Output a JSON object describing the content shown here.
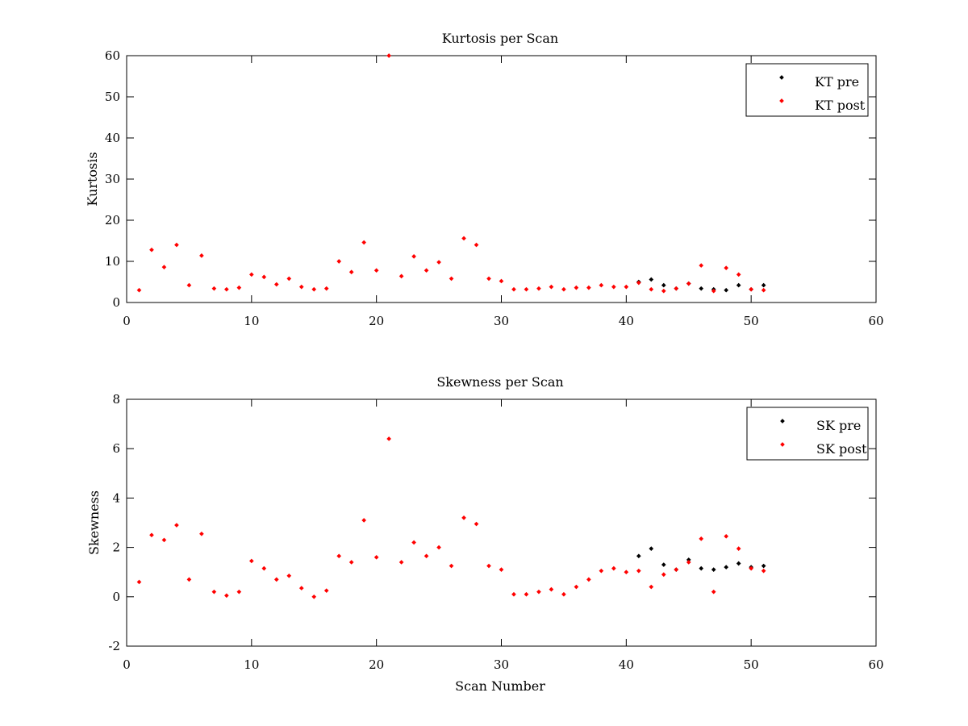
{
  "chart_data": [
    {
      "type": "scatter",
      "title": "Kurtosis per Scan",
      "xlabel": "",
      "ylabel": "Kurtosis",
      "xlim": [
        0,
        60
      ],
      "ylim": [
        0,
        60
      ],
      "xticks": [
        0,
        10,
        20,
        30,
        40,
        50,
        60
      ],
      "yticks": [
        0,
        10,
        20,
        30,
        40,
        50,
        60
      ],
      "legend_position": "top-right",
      "grid": false,
      "series": [
        {
          "name": "KT pre",
          "color": "#000000",
          "x": [
            41,
            42,
            43,
            44,
            45,
            46,
            47,
            48,
            49,
            50,
            51
          ],
          "y": [
            5.0,
            5.6,
            4.2,
            3.4,
            4.6,
            3.4,
            3.2,
            3.0,
            4.2,
            3.2,
            4.2
          ]
        },
        {
          "name": "KT post",
          "color": "#ff0000",
          "x": [
            1,
            2,
            3,
            4,
            5,
            6,
            7,
            8,
            9,
            10,
            11,
            12,
            13,
            14,
            15,
            16,
            17,
            18,
            19,
            20,
            21,
            22,
            23,
            24,
            25,
            26,
            27,
            28,
            29,
            30,
            31,
            32,
            33,
            34,
            35,
            36,
            37,
            38,
            39,
            40,
            41,
            42,
            43,
            44,
            45,
            46,
            47,
            48,
            49,
            50,
            51
          ],
          "y": [
            3.0,
            12.8,
            8.6,
            14.0,
            4.2,
            11.4,
            3.4,
            3.2,
            3.6,
            6.8,
            6.2,
            4.4,
            5.8,
            3.8,
            3.2,
            3.4,
            10.0,
            7.4,
            14.6,
            7.8,
            60,
            6.4,
            11.2,
            7.8,
            9.8,
            5.8,
            15.6,
            14.0,
            5.8,
            5.2,
            3.2,
            3.2,
            3.4,
            3.8,
            3.2,
            3.6,
            3.6,
            4.2,
            3.8,
            3.8,
            4.8,
            3.2,
            2.8,
            3.4,
            4.6,
            9.0,
            2.8,
            8.4,
            6.8,
            3.2,
            3.0
          ]
        }
      ]
    },
    {
      "type": "scatter",
      "title": "Skewness per Scan",
      "xlabel": "Scan Number",
      "ylabel": "Skewness",
      "xlim": [
        0,
        60
      ],
      "ylim": [
        -2,
        8
      ],
      "xticks": [
        0,
        10,
        20,
        30,
        40,
        50,
        60
      ],
      "yticks": [
        -2,
        0,
        2,
        4,
        6,
        8
      ],
      "legend_position": "top-right",
      "grid": false,
      "series": [
        {
          "name": "SK pre",
          "color": "#000000",
          "x": [
            41,
            42,
            43,
            44,
            45,
            46,
            47,
            48,
            49,
            50,
            51
          ],
          "y": [
            1.65,
            1.95,
            1.3,
            1.1,
            1.5,
            1.15,
            1.1,
            1.2,
            1.35,
            1.2,
            1.25
          ]
        },
        {
          "name": "SK post",
          "color": "#ff0000",
          "x": [
            1,
            2,
            3,
            4,
            5,
            6,
            7,
            8,
            9,
            10,
            11,
            12,
            13,
            14,
            15,
            16,
            17,
            18,
            19,
            20,
            21,
            22,
            23,
            24,
            25,
            26,
            27,
            28,
            29,
            30,
            31,
            32,
            33,
            34,
            35,
            36,
            37,
            38,
            39,
            40,
            41,
            42,
            43,
            44,
            45,
            46,
            47,
            48,
            49,
            50,
            51
          ],
          "y": [
            0.6,
            2.5,
            2.3,
            2.9,
            0.7,
            2.55,
            0.2,
            0.05,
            0.2,
            1.45,
            1.15,
            0.7,
            0.85,
            0.35,
            0.0,
            0.25,
            1.65,
            1.4,
            3.1,
            1.6,
            6.4,
            1.4,
            2.2,
            1.65,
            2.0,
            1.25,
            3.2,
            2.95,
            1.25,
            1.1,
            0.1,
            0.1,
            0.2,
            0.3,
            0.1,
            0.4,
            0.7,
            1.05,
            1.15,
            1.0,
            1.05,
            0.4,
            0.9,
            1.1,
            1.4,
            2.35,
            0.2,
            2.45,
            1.95,
            1.15,
            1.05
          ]
        }
      ]
    }
  ]
}
